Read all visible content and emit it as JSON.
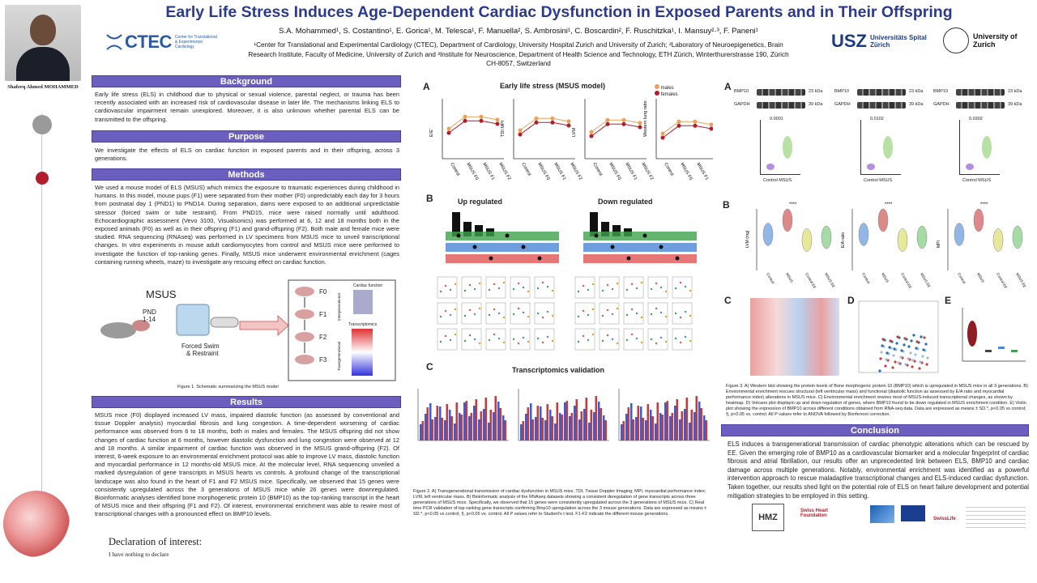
{
  "title": "Early Life Stress Induces Age-Dependent Cardiac Dysfunction in Exposed Parents and in Their Offspring",
  "authors": "S.A. Mohammed¹, S. Costantino¹, E. Gorica¹, M. Telesca¹, F. Manuella², S. Ambrosini¹, C. Boscardin², F. Ruschitzka¹, I. Mansuy²·³, F. Paneni¹",
  "affiliations": "¹Center for Translational and Experimental Cardiology (CTEC), Department of Cardiology, University Hospital Zurich and University of Zurich; ²Laboratory of Neuroepigenetics, Brain Research Institute, Faculty of Medicine, University of Zurich and ³Institute for Neuroscience, Department of Health Science and Technology, ETH Zürich, Winterthurerstrasse 190, Zürich CH-8057, Switzerland",
  "presenter": {
    "name": "Shafeeq Ahmed MOHAMMED"
  },
  "logos": {
    "ctec": "CTEC",
    "ctec_sub": "Center for Translational & Experimental Cardiology",
    "usz": "USZ",
    "usz_sub": "Universitäts Spital Zürich",
    "uzh": "University of Zurich"
  },
  "sections": {
    "background": {
      "heading": "Background",
      "text": "Early life stress (ELS) in childhood due to physical or sexual violence, parental neglect, or trauma has been recently associated with an increased risk of cardiovascular disease in later life. The mechanisms linking ELS to cardiovascular impairment remain unexplored. Moreover, it is also unknown whether parental ELS can be transmitted to the offspring."
    },
    "purpose": {
      "heading": "Purpose",
      "text": "We investigate the effects of ELS on cardiac function in exposed parents and in their offspring, across 3 generations."
    },
    "methods": {
      "heading": "Methods",
      "text": "We used a mouse model of ELS (MSUS) which mimics the exposure to traumatic experiences during childhood in humans. In this model, mouse pups (F1) were separated from their mother (F0) unpredictably each day for 3 hours from postnatal day 1 (PND1) to PND14. During separation, dams were exposed to an additional unpredictable stressor (forced swim or tube restraint). From PND15, mice were raised normally until adulthood. Echocardiographic assessment (Vevo 3100, Visualsonics) was performed at 6, 12 and 18 months both in the exposed animals (F0) as well as in their offspring (F1) and grand-offspring (F2). Both male and female mice were studied. RNA sequencing (RNAseq) was performed in LV specimens from MSUS mice to unveil transcriptional changes. In vitro experiments in mouse adult cardiomyocytes from control and MSUS mice were performed to investigate the function of top-ranking genes. Finally, MSUS mice underwent environmental enrichment (cages containing running wheels, maze) to investigate any rescuing effect on cardiac function."
    },
    "results": {
      "heading": "Results",
      "text": "MSUS mice (F0) displayed increased LV mass, impaired diastolic function (as assessed by conventional and tissue Doppler analysis) myocardial fibrosis and lung congestion. A time-dependent worsening of cardiac performance was observed from 6 to 18 months, both in males and females. The MSUS offspring did not show changes of cardiac function at 6 months, however diastolic dysfunction and lung congestion were observed at 12 and 18 months. A similar impairment of cardiac function was observed in the MSUS grand-offspring (F2). Of interest, 6-week exposure to an environmental enrichment protocol was able to improve LV mass, diastolic function and myocardial performance in 12 months-old MSUS mice. At the molecular level, RNA sequencing unveiled a marked dysregulation of gene transcripts in MSUS hearts vs controls. A profound change of the transcriptional landscape was also found in the heart of F1 and F2 MSUS mice. Specifically, we observed that 15 genes were consistently upregulated across the 3 generations of MSUS mice while 26 genes were downregulated. Bioinformatic analyses identified bone morphogenetic protein 10 (BMP10) as the top-ranking transcript in the heart of MSUS mice and their offspring (F1 and F2). Of interest, environmental enrichment was able to rewire most of transcriptional changes with a pronounced effect on BMP10 levels."
    },
    "conclusion": {
      "heading": "Conclusion",
      "text": "ELS induces a transgenerational transmission of cardiac phenotypic alterations which can be rescued by EE. Given the emerging role of BMP10 as a cardiovascular biomarker and a molecular fingerprint of cardiac fibrosis and atrial fibrillation, our results offer an unprecedented link between ELS, BMP10 and cardiac damage across multiple generations. Notably, environmental enrichment was identified as a powerful intervention approach to rescue maladaptive transcriptional changes and ELS-induced cardiac dysfunction. Taken together, our results shed light on the potential role of ELS on heart failure development and potential mitigation strategies to be employed in this setting."
    }
  },
  "figure1": {
    "label": "MSUS",
    "pnd": "PND\n1-14",
    "stress": "Forced Swim\n& Restraint",
    "generations": [
      "F0",
      "F1",
      "F2",
      "F3"
    ],
    "cardiac": "Cardiac function",
    "transcriptomics": "Transcriptomics",
    "intergen": "Intergenerational",
    "transgen": "Transgenerational",
    "caption": "Figure 1. Schematic summarizing the MSUS model"
  },
  "figure2": {
    "panel_a": "A",
    "panel_b": "B",
    "panel_c": "C",
    "heading_a": "Early life stress (MSUS model)",
    "legend_males": "males",
    "legend_females": "females",
    "ylabels": [
      "E/E'",
      "TDI MPI",
      "LVM",
      "Western lung ratio"
    ],
    "xcats": [
      "Control",
      "MSUS F0",
      "MSUS F1",
      "MSUS F2"
    ],
    "up": "Up regulated",
    "down": "Down regulated",
    "heading_c": "Transcriptomics validation",
    "caption": "Figure 2. A) Transgenerational transmission of cardiac dysfunction in MSUS mice. TDI, Tissue Doppler Imaging; MPI, myocardial performance index; LVM, left ventricular mass. B) Bioinformatic analysis of the RNAseq datasets showing a consistent deregulation of gene transcripts across three generations of MSUS mice. Specifically, we observed that 15 genes were consistently upregulated across the 3 generations of MSUS mice. C) Real time PCR validation of top ranking gene transcripts confirming Bmp10 upregulation across the 3 mouse generations. Data are expressed as means ± SD.*, p<0.05 vs control; §, p<0.05 vs. control. All P values refer to Student's t test. F1-F2 indicate the different mouse generations."
  },
  "figure3": {
    "panel_a": "A",
    "panel_b": "B",
    "panel_c": "C",
    "panel_d": "D",
    "panel_e": "E",
    "bmp10": "BMP10",
    "gapdh": "GAPDH",
    "kda23": "23 kDa",
    "kda39": "39 kDa",
    "pvals": [
      "0.0001",
      "0.0102",
      "0.0302"
    ],
    "cats_a": [
      "Control",
      "MSUS"
    ],
    "ylabels_b": [
      "LVM (mg)",
      "E/A ratio",
      "MPI"
    ],
    "cats_b": [
      "Control",
      "MSUS",
      "Control EE",
      "MSUS EE"
    ],
    "sig": "****",
    "caption": "Figure 3. A) Western blot showing the protein levels of Bone morphogenic protein 10 (BMP10) which is upregulated in MSUS mice in all 3 generations. B) Environmental enrichment rescues structural (left ventricular mass) and functional (diastolic function as assessed by E/A ratio and myocardial performance index) alterations in MSUS mice. C) Environmental enrichment rewires most of MSUS-induced transcriptional changes, as shown by heatmap. D) Volcano plot displayin up and down regulation of genes, where BMP10 found to be down regulated in MSUS enrichment condition. E) Violin plot showing the expression of BMP10 across different conditions obtained from RNA-seq data. Data are expressed as means ± SD.*, p<0.05 vs control; §, p<0.05 vs. control. All P values refer to ANOVA followed by Bonferroni correction."
  },
  "declaration": {
    "title": "Declaration of interest:",
    "text": "I have nothing to declare"
  },
  "footer_logos": [
    "HMZ",
    "Swiss Heart Foundation",
    "SwissLife"
  ],
  "colors": {
    "accent": "#6a5fbf",
    "title": "#2b3a8f",
    "males": "#e8a25a",
    "females": "#b31d2b"
  }
}
